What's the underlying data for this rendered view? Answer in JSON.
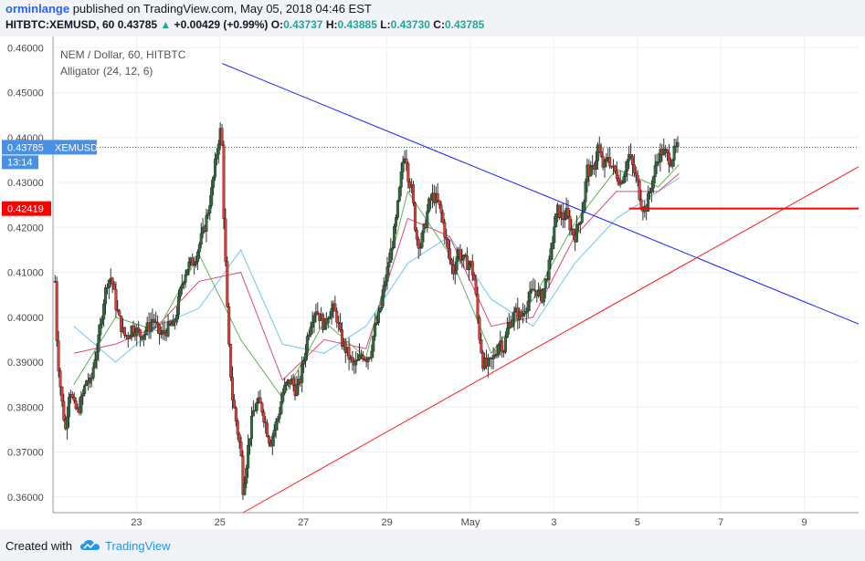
{
  "header": {
    "author": "orminlange",
    "published_text": "published on TradingView.com, May 05, 2018 04:46 EST",
    "symbol_line": "HITBTC:XEMUSD, 60",
    "last": "0.43785",
    "arrow": "▲",
    "change": "+0.00429 (+0.99%)",
    "o_label": "O:",
    "o_val": "0.43737",
    "h_label": "H:",
    "h_val": "0.43885",
    "l_label": "L:",
    "l_val": "0.43730",
    "c_label": "C:",
    "c_val": "0.43785"
  },
  "legend": {
    "title": "NEM / Dollar, 60, HITBTC",
    "indicator": "Alligator (24, 12, 6)"
  },
  "price_tags": {
    "current": {
      "value": "0.43785",
      "label": "XEMUSD",
      "countdown": "13:14",
      "color": "#4a90e2"
    },
    "horizontal": {
      "value": "0.42419",
      "color": "#ff0000"
    }
  },
  "footer": {
    "created_with": "Created with",
    "brand": "TradingView"
  },
  "colors": {
    "up": "#5b8a3c",
    "down": "#d21414",
    "candle_up": "#2f6e3b",
    "candle_down": "#e53935",
    "jaw": "#6ec6f0",
    "teeth": "#e0467c",
    "lips": "#64b05a",
    "descending_line": "#1a1aff",
    "ascending_line": "#ff1a1a",
    "support_line": "#ff0000"
  },
  "chart_data": {
    "type": "candlestick",
    "title": "NEM / Dollar, 60, HITBTC",
    "indicator": "Alligator (24, 12, 6)",
    "y_ticks": [
      "0.46000",
      "0.45000",
      "0.44000",
      "0.43000",
      "0.42000",
      "0.41000",
      "0.40000",
      "0.39000",
      "0.38000",
      "0.37000",
      "0.36000"
    ],
    "y_tick_values": [
      0.46,
      0.45,
      0.44,
      0.43,
      0.42,
      0.41,
      0.4,
      0.39,
      0.38,
      0.37,
      0.36
    ],
    "ylim": [
      0.3565,
      0.4625
    ],
    "x_ticks": [
      "23",
      "25",
      "27",
      "29",
      "May",
      "3",
      "5",
      "7",
      "9"
    ],
    "x_tick_days": [
      2,
      4,
      6,
      8,
      10,
      12,
      14,
      16,
      18
    ],
    "xlim_days": [
      0,
      19.3
    ],
    "price_path": [
      [
        0.05,
        0.408
      ],
      [
        0.1,
        0.393
      ],
      [
        0.2,
        0.382
      ],
      [
        0.3,
        0.375
      ],
      [
        0.4,
        0.385
      ],
      [
        0.5,
        0.38
      ],
      [
        0.6,
        0.379
      ],
      [
        0.7,
        0.382
      ],
      [
        0.8,
        0.386
      ],
      [
        0.9,
        0.385
      ],
      [
        1.0,
        0.391
      ],
      [
        1.1,
        0.395
      ],
      [
        1.2,
        0.403
      ],
      [
        1.3,
        0.408
      ],
      [
        1.4,
        0.409
      ],
      [
        1.5,
        0.403
      ],
      [
        1.6,
        0.399
      ],
      [
        1.7,
        0.396
      ],
      [
        1.8,
        0.396
      ],
      [
        1.9,
        0.398
      ],
      [
        2.0,
        0.397
      ],
      [
        2.1,
        0.396
      ],
      [
        2.2,
        0.397
      ],
      [
        2.3,
        0.398
      ],
      [
        2.4,
        0.4
      ],
      [
        2.5,
        0.397
      ],
      [
        2.6,
        0.396
      ],
      [
        2.7,
        0.397
      ],
      [
        2.8,
        0.398
      ],
      [
        2.9,
        0.398
      ],
      [
        3.0,
        0.403
      ],
      [
        3.1,
        0.408
      ],
      [
        3.2,
        0.411
      ],
      [
        3.3,
        0.412
      ],
      [
        3.4,
        0.413
      ],
      [
        3.5,
        0.416
      ],
      [
        3.6,
        0.419
      ],
      [
        3.7,
        0.423
      ],
      [
        3.8,
        0.428
      ],
      [
        3.9,
        0.435
      ],
      [
        4.0,
        0.442
      ],
      [
        4.05,
        0.438
      ],
      [
        4.1,
        0.42
      ],
      [
        4.2,
        0.395
      ],
      [
        4.3,
        0.382
      ],
      [
        4.4,
        0.376
      ],
      [
        4.5,
        0.37
      ],
      [
        4.55,
        0.362
      ],
      [
        4.6,
        0.365
      ],
      [
        4.7,
        0.373
      ],
      [
        4.8,
        0.379
      ],
      [
        4.9,
        0.381
      ],
      [
        5.0,
        0.38
      ],
      [
        5.1,
        0.376
      ],
      [
        5.2,
        0.372
      ],
      [
        5.3,
        0.375
      ],
      [
        5.4,
        0.378
      ],
      [
        5.5,
        0.383
      ],
      [
        5.6,
        0.385
      ],
      [
        5.7,
        0.386
      ],
      [
        5.8,
        0.384
      ],
      [
        5.9,
        0.385
      ],
      [
        6.0,
        0.39
      ],
      [
        6.1,
        0.396
      ],
      [
        6.2,
        0.4
      ],
      [
        6.3,
        0.402
      ],
      [
        6.4,
        0.4
      ],
      [
        6.5,
        0.398
      ],
      [
        6.6,
        0.401
      ],
      [
        6.7,
        0.402
      ],
      [
        6.8,
        0.4
      ],
      [
        6.9,
        0.395
      ],
      [
        7.0,
        0.393
      ],
      [
        7.1,
        0.391
      ],
      [
        7.2,
        0.389
      ],
      [
        7.3,
        0.39
      ],
      [
        7.4,
        0.392
      ],
      [
        7.5,
        0.391
      ],
      [
        7.6,
        0.392
      ],
      [
        7.7,
        0.397
      ],
      [
        7.8,
        0.4
      ],
      [
        7.9,
        0.405
      ],
      [
        8.0,
        0.41
      ],
      [
        8.1,
        0.415
      ],
      [
        8.2,
        0.42
      ],
      [
        8.3,
        0.428
      ],
      [
        8.4,
        0.436
      ],
      [
        8.45,
        0.437
      ],
      [
        8.5,
        0.432
      ],
      [
        8.6,
        0.428
      ],
      [
        8.7,
        0.418
      ],
      [
        8.8,
        0.416
      ],
      [
        8.9,
        0.42
      ],
      [
        9.0,
        0.425
      ],
      [
        9.1,
        0.427
      ],
      [
        9.2,
        0.426
      ],
      [
        9.3,
        0.423
      ],
      [
        9.4,
        0.418
      ],
      [
        9.5,
        0.413
      ],
      [
        9.6,
        0.41
      ],
      [
        9.7,
        0.415
      ],
      [
        9.8,
        0.413
      ],
      [
        9.9,
        0.412
      ],
      [
        10.0,
        0.412
      ],
      [
        10.1,
        0.408
      ],
      [
        10.2,
        0.397
      ],
      [
        10.3,
        0.39
      ],
      [
        10.4,
        0.389
      ],
      [
        10.5,
        0.39
      ],
      [
        10.6,
        0.392
      ],
      [
        10.7,
        0.395
      ],
      [
        10.8,
        0.393
      ],
      [
        10.9,
        0.398
      ],
      [
        11.0,
        0.4
      ],
      [
        11.1,
        0.401
      ],
      [
        11.2,
        0.4
      ],
      [
        11.3,
        0.402
      ],
      [
        11.4,
        0.404
      ],
      [
        11.5,
        0.406
      ],
      [
        11.6,
        0.406
      ],
      [
        11.7,
        0.404
      ],
      [
        11.8,
        0.408
      ],
      [
        11.9,
        0.412
      ],
      [
        12.0,
        0.42
      ],
      [
        12.1,
        0.424
      ],
      [
        12.2,
        0.422
      ],
      [
        12.3,
        0.423
      ],
      [
        12.4,
        0.42
      ],
      [
        12.5,
        0.418
      ],
      [
        12.6,
        0.421
      ],
      [
        12.7,
        0.425
      ],
      [
        12.8,
        0.433
      ],
      [
        12.9,
        0.432
      ],
      [
        13.0,
        0.435
      ],
      [
        13.05,
        0.438
      ],
      [
        13.1,
        0.436
      ],
      [
        13.2,
        0.433
      ],
      [
        13.3,
        0.436
      ],
      [
        13.4,
        0.433
      ],
      [
        13.5,
        0.432
      ],
      [
        13.6,
        0.43
      ],
      [
        13.7,
        0.433
      ],
      [
        13.8,
        0.436
      ],
      [
        13.9,
        0.433
      ],
      [
        14.0,
        0.43
      ],
      [
        14.1,
        0.425
      ],
      [
        14.2,
        0.424
      ],
      [
        14.3,
        0.428
      ],
      [
        14.4,
        0.432
      ],
      [
        14.5,
        0.436
      ],
      [
        14.6,
        0.437
      ],
      [
        14.7,
        0.436
      ],
      [
        14.8,
        0.435
      ],
      [
        14.9,
        0.437
      ],
      [
        15.0,
        0.438
      ]
    ],
    "alligator": {
      "jaw": [
        [
          0.5,
          0.398
        ],
        [
          1.5,
          0.39
        ],
        [
          2.5,
          0.398
        ],
        [
          3.5,
          0.402
        ],
        [
          4.5,
          0.415
        ],
        [
          5.5,
          0.394
        ],
        [
          6.5,
          0.392
        ],
        [
          7.5,
          0.398
        ],
        [
          8.5,
          0.412
        ],
        [
          9.5,
          0.418
        ],
        [
          10.5,
          0.404
        ],
        [
          11.5,
          0.398
        ],
        [
          12.5,
          0.412
        ],
        [
          13.5,
          0.422
        ],
        [
          14.5,
          0.428
        ],
        [
          15.0,
          0.431
        ]
      ],
      "teeth": [
        [
          0.5,
          0.392
        ],
        [
          1.5,
          0.394
        ],
        [
          2.5,
          0.398
        ],
        [
          3.5,
          0.408
        ],
        [
          4.5,
          0.41
        ],
        [
          5.5,
          0.386
        ],
        [
          6.5,
          0.395
        ],
        [
          7.5,
          0.393
        ],
        [
          8.5,
          0.422
        ],
        [
          9.5,
          0.418
        ],
        [
          10.5,
          0.398
        ],
        [
          11.5,
          0.4
        ],
        [
          12.5,
          0.418
        ],
        [
          13.5,
          0.428
        ],
        [
          14.5,
          0.428
        ],
        [
          15.0,
          0.432
        ]
      ],
      "lips": [
        [
          0.5,
          0.385
        ],
        [
          1.5,
          0.4
        ],
        [
          2.5,
          0.397
        ],
        [
          3.5,
          0.414
        ],
        [
          4.5,
          0.395
        ],
        [
          5.5,
          0.382
        ],
        [
          6.5,
          0.399
        ],
        [
          7.5,
          0.391
        ],
        [
          8.5,
          0.428
        ],
        [
          9.5,
          0.414
        ],
        [
          10.5,
          0.392
        ],
        [
          11.5,
          0.404
        ],
        [
          12.5,
          0.421
        ],
        [
          13.5,
          0.433
        ],
        [
          14.5,
          0.429
        ],
        [
          15.0,
          0.434
        ]
      ]
    },
    "trend_lines": [
      {
        "name": "descending-resistance",
        "from": [
          4.05,
          0.4565
        ],
        "to": [
          19.3,
          0.3985
        ]
      },
      {
        "name": "ascending-support",
        "from": [
          4.55,
          0.3565
        ],
        "to": [
          19.3,
          0.4335
        ]
      },
      {
        "name": "horizontal-support",
        "from": [
          13.8,
          0.4242
        ],
        "to": [
          19.3,
          0.4242
        ]
      }
    ],
    "current_price": 0.43785
  }
}
